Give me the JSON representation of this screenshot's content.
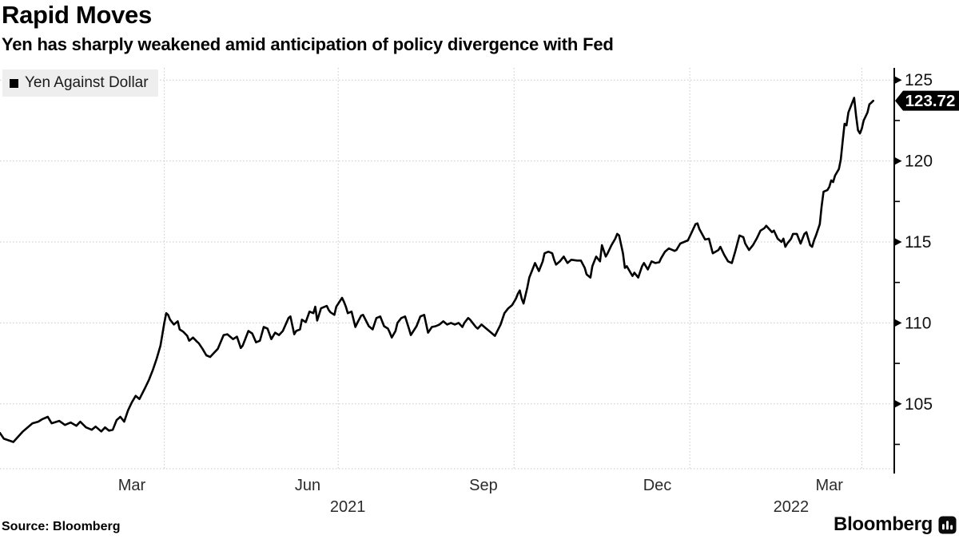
{
  "header": {
    "title": "Rapid Moves",
    "subtitle": "Yen has sharply weakened amid anticipation of policy divergence with Fed"
  },
  "legend": {
    "swatch_color": "#000000",
    "label": "Yen Against Dollar"
  },
  "footer": {
    "source": "Source: Bloomberg",
    "brand": "Bloomberg",
    "brand_icon": "bloomberg-bars-icon"
  },
  "colors": {
    "background": "#ffffff",
    "line": "#000000",
    "grid": "#c9c9c9",
    "axis": "#000000",
    "tick_label": "#111111",
    "month_label": "#2b2b2b",
    "legend_bg": "#eeeeee",
    "tag_bg": "#000000",
    "tag_text": "#ffffff"
  },
  "chart_data": {
    "type": "line",
    "title": "Rapid Moves",
    "subtitle": "Yen has sharply weakened amid anticipation of policy divergence with Fed",
    "xlabel": "",
    "ylabel": "",
    "grid": "dotted",
    "legend_position": "top-left",
    "y_axis_side": "right",
    "x_domain": [
      "2021-01-05",
      "2022-04-18"
    ],
    "y_domain": [
      100.7,
      125.75
    ],
    "y_ticks_major": [
      105,
      110,
      115,
      120,
      125
    ],
    "y_ticks_minor": [
      102.5,
      107.5,
      112.5,
      117.5,
      122.5
    ],
    "x_gridlines": [
      "2021-04-01",
      "2021-07-01",
      "2021-10-01",
      "2022-01-01",
      "2022-04-01"
    ],
    "x_ticks": [
      {
        "label": "Mar",
        "date": "2021-03-15"
      },
      {
        "label": "Jun",
        "date": "2021-06-15"
      },
      {
        "label": "Sep",
        "date": "2021-09-15"
      },
      {
        "label": "Dec",
        "date": "2021-12-15"
      },
      {
        "label": "Mar",
        "date": "2022-03-15"
      }
    ],
    "year_labels": [
      {
        "label": "2021",
        "date": "2021-07-06"
      },
      {
        "label": "2022",
        "date": "2022-02-23"
      }
    ],
    "last_value": 123.72,
    "last_value_label": "123.72",
    "series": [
      {
        "name": "Yen Against Dollar",
        "color": "#000000",
        "points": [
          [
            "2021-01-05",
            103.2
          ],
          [
            "2021-01-07",
            102.85
          ],
          [
            "2021-01-12",
            102.65
          ],
          [
            "2021-01-17",
            103.3
          ],
          [
            "2021-01-22",
            103.8
          ],
          [
            "2021-01-25",
            103.9
          ],
          [
            "2021-01-27",
            104.05
          ],
          [
            "2021-01-30",
            104.2
          ],
          [
            "2021-02-01",
            103.8
          ],
          [
            "2021-02-05",
            103.95
          ],
          [
            "2021-02-08",
            103.7
          ],
          [
            "2021-02-11",
            103.85
          ],
          [
            "2021-02-14",
            103.65
          ],
          [
            "2021-02-16",
            103.9
          ],
          [
            "2021-02-19",
            103.55
          ],
          [
            "2021-02-22",
            103.4
          ],
          [
            "2021-02-24",
            103.6
          ],
          [
            "2021-02-27",
            103.3
          ],
          [
            "2021-03-01",
            103.55
          ],
          [
            "2021-03-03",
            103.35
          ],
          [
            "2021-03-05",
            103.4
          ],
          [
            "2021-03-07",
            104.0
          ],
          [
            "2021-03-09",
            104.2
          ],
          [
            "2021-03-11",
            103.9
          ],
          [
            "2021-03-13",
            104.6
          ],
          [
            "2021-03-15",
            105.1
          ],
          [
            "2021-03-17",
            105.5
          ],
          [
            "2021-03-19",
            105.3
          ],
          [
            "2021-03-22",
            106.0
          ],
          [
            "2021-03-24",
            106.5
          ],
          [
            "2021-03-26",
            107.1
          ],
          [
            "2021-03-28",
            107.8
          ],
          [
            "2021-03-30",
            108.6
          ],
          [
            "2021-03-31",
            109.3
          ],
          [
            "2021-04-01",
            110.0
          ],
          [
            "2021-04-02",
            110.6
          ],
          [
            "2021-04-03",
            110.5
          ],
          [
            "2021-04-04",
            110.2
          ],
          [
            "2021-04-06",
            109.9
          ],
          [
            "2021-04-08",
            110.1
          ],
          [
            "2021-04-09",
            109.6
          ],
          [
            "2021-04-11",
            109.45
          ],
          [
            "2021-04-13",
            109.2
          ],
          [
            "2021-04-14",
            108.9
          ],
          [
            "2021-04-16",
            109.1
          ],
          [
            "2021-04-18",
            108.85
          ],
          [
            "2021-04-19",
            108.75
          ],
          [
            "2021-04-21",
            108.4
          ],
          [
            "2021-04-23",
            108.0
          ],
          [
            "2021-04-25",
            107.9
          ],
          [
            "2021-04-27",
            108.15
          ],
          [
            "2021-04-29",
            108.4
          ],
          [
            "2021-05-02",
            109.25
          ],
          [
            "2021-05-04",
            109.3
          ],
          [
            "2021-05-07",
            109.0
          ],
          [
            "2021-05-09",
            109.15
          ],
          [
            "2021-05-11",
            108.45
          ],
          [
            "2021-05-12",
            108.6
          ],
          [
            "2021-05-15",
            109.5
          ],
          [
            "2021-05-17",
            109.35
          ],
          [
            "2021-05-19",
            108.8
          ],
          [
            "2021-05-21",
            108.9
          ],
          [
            "2021-05-23",
            109.75
          ],
          [
            "2021-05-25",
            109.65
          ],
          [
            "2021-05-27",
            109.0
          ],
          [
            "2021-05-29",
            109.4
          ],
          [
            "2021-05-31",
            109.25
          ],
          [
            "2021-06-02",
            109.5
          ],
          [
            "2021-06-05",
            110.3
          ],
          [
            "2021-06-06",
            110.4
          ],
          [
            "2021-06-08",
            109.3
          ],
          [
            "2021-06-09",
            109.5
          ],
          [
            "2021-06-11",
            109.6
          ],
          [
            "2021-06-12",
            110.2
          ],
          [
            "2021-06-14",
            110.05
          ],
          [
            "2021-06-16",
            110.7
          ],
          [
            "2021-06-18",
            110.6
          ],
          [
            "2021-06-19",
            111.0
          ],
          [
            "2021-06-20",
            110.15
          ],
          [
            "2021-06-22",
            110.9
          ],
          [
            "2021-06-25",
            111.05
          ],
          [
            "2021-06-26",
            110.8
          ],
          [
            "2021-06-27",
            110.65
          ],
          [
            "2021-06-29",
            110.5
          ],
          [
            "2021-06-30",
            111.0
          ],
          [
            "2021-07-03",
            111.55
          ],
          [
            "2021-07-04",
            111.3
          ],
          [
            "2021-07-05",
            111.0
          ],
          [
            "2021-07-06",
            110.6
          ],
          [
            "2021-07-08",
            110.7
          ],
          [
            "2021-07-10",
            109.75
          ],
          [
            "2021-07-11",
            110.0
          ],
          [
            "2021-07-13",
            110.45
          ],
          [
            "2021-07-14",
            110.5
          ],
          [
            "2021-07-17",
            109.8
          ],
          [
            "2021-07-19",
            109.6
          ],
          [
            "2021-07-21",
            110.3
          ],
          [
            "2021-07-23",
            110.4
          ],
          [
            "2021-07-25",
            109.8
          ],
          [
            "2021-07-27",
            109.65
          ],
          [
            "2021-07-28",
            109.4
          ],
          [
            "2021-07-29",
            109.1
          ],
          [
            "2021-07-31",
            109.5
          ],
          [
            "2021-08-01",
            110.0
          ],
          [
            "2021-08-03",
            110.3
          ],
          [
            "2021-08-05",
            110.4
          ],
          [
            "2021-08-07",
            109.65
          ],
          [
            "2021-08-08",
            109.25
          ],
          [
            "2021-08-11",
            109.8
          ],
          [
            "2021-08-13",
            110.4
          ],
          [
            "2021-08-15",
            110.5
          ],
          [
            "2021-08-17",
            109.4
          ],
          [
            "2021-08-19",
            109.75
          ],
          [
            "2021-08-21",
            109.8
          ],
          [
            "2021-08-23",
            109.9
          ],
          [
            "2021-08-25",
            110.1
          ],
          [
            "2021-08-27",
            109.9
          ],
          [
            "2021-08-29",
            110.0
          ],
          [
            "2021-08-31",
            109.9
          ],
          [
            "2021-09-02",
            110.0
          ],
          [
            "2021-09-04",
            109.75
          ],
          [
            "2021-09-05",
            110.0
          ],
          [
            "2021-09-07",
            110.3
          ],
          [
            "2021-09-08",
            110.2
          ],
          [
            "2021-09-10",
            109.9
          ],
          [
            "2021-09-11",
            109.75
          ],
          [
            "2021-09-12",
            109.65
          ],
          [
            "2021-09-14",
            109.9
          ],
          [
            "2021-09-16",
            109.7
          ],
          [
            "2021-09-18",
            109.5
          ],
          [
            "2021-09-21",
            109.2
          ],
          [
            "2021-09-24",
            109.9
          ],
          [
            "2021-09-26",
            110.6
          ],
          [
            "2021-09-28",
            110.9
          ],
          [
            "2021-09-30",
            111.1
          ],
          [
            "2021-10-02",
            111.5
          ],
          [
            "2021-10-03",
            111.8
          ],
          [
            "2021-10-04",
            112.0
          ],
          [
            "2021-10-05",
            111.5
          ],
          [
            "2021-10-06",
            111.2
          ],
          [
            "2021-10-08",
            112.2
          ],
          [
            "2021-10-09",
            112.8
          ],
          [
            "2021-10-11",
            113.4
          ],
          [
            "2021-10-12",
            113.7
          ],
          [
            "2021-10-14",
            113.2
          ],
          [
            "2021-10-16",
            113.8
          ],
          [
            "2021-10-17",
            114.3
          ],
          [
            "2021-10-19",
            114.4
          ],
          [
            "2021-10-21",
            114.3
          ],
          [
            "2021-10-22",
            113.9
          ],
          [
            "2021-10-23",
            113.6
          ],
          [
            "2021-10-25",
            113.8
          ],
          [
            "2021-10-27",
            114.1
          ],
          [
            "2021-10-28",
            113.9
          ],
          [
            "2021-10-29",
            113.7
          ],
          [
            "2021-10-31",
            113.9
          ],
          [
            "2021-11-03",
            113.85
          ],
          [
            "2021-11-05",
            113.85
          ],
          [
            "2021-11-07",
            113.4
          ],
          [
            "2021-11-08",
            113.0
          ],
          [
            "2021-11-10",
            112.8
          ],
          [
            "2021-11-11",
            113.5
          ],
          [
            "2021-11-13",
            114.1
          ],
          [
            "2021-11-15",
            113.8
          ],
          [
            "2021-11-16",
            114.8
          ],
          [
            "2021-11-18",
            114.1
          ],
          [
            "2021-11-19",
            114.3
          ],
          [
            "2021-11-21",
            114.8
          ],
          [
            "2021-11-23",
            115.2
          ],
          [
            "2021-11-24",
            115.5
          ],
          [
            "2021-11-25",
            115.4
          ],
          [
            "2021-11-27",
            114.3
          ],
          [
            "2021-11-28",
            113.4
          ],
          [
            "2021-11-29",
            113.5
          ],
          [
            "2021-12-01",
            113.1
          ],
          [
            "2021-12-02",
            112.9
          ],
          [
            "2021-12-03",
            113.1
          ],
          [
            "2021-12-04",
            112.95
          ],
          [
            "2021-12-05",
            112.8
          ],
          [
            "2021-12-07",
            113.5
          ],
          [
            "2021-12-08",
            113.7
          ],
          [
            "2021-12-10",
            113.3
          ],
          [
            "2021-12-12",
            113.8
          ],
          [
            "2021-12-14",
            113.7
          ],
          [
            "2021-12-16",
            113.75
          ],
          [
            "2021-12-17",
            114.0
          ],
          [
            "2021-12-19",
            114.4
          ],
          [
            "2021-12-21",
            114.6
          ],
          [
            "2021-12-24",
            114.45
          ],
          [
            "2021-12-25",
            114.5
          ],
          [
            "2021-12-27",
            114.9
          ],
          [
            "2021-12-29",
            115.0
          ],
          [
            "2021-12-31",
            115.1
          ],
          [
            "2022-01-02",
            115.6
          ],
          [
            "2022-01-04",
            116.1
          ],
          [
            "2022-01-05",
            116.15
          ],
          [
            "2022-01-06",
            115.8
          ],
          [
            "2022-01-09",
            115.15
          ],
          [
            "2022-01-11",
            115.2
          ],
          [
            "2022-01-13",
            114.3
          ],
          [
            "2022-01-16",
            114.5
          ],
          [
            "2022-01-17",
            114.7
          ],
          [
            "2022-01-19",
            114.2
          ],
          [
            "2022-01-21",
            113.8
          ],
          [
            "2022-01-23",
            113.7
          ],
          [
            "2022-01-25",
            114.5
          ],
          [
            "2022-01-27",
            115.4
          ],
          [
            "2022-01-29",
            115.3
          ],
          [
            "2022-01-30",
            114.9
          ],
          [
            "2022-02-01",
            114.5
          ],
          [
            "2022-02-03",
            114.8
          ],
          [
            "2022-02-05",
            115.2
          ],
          [
            "2022-02-07",
            115.7
          ],
          [
            "2022-02-09",
            115.85
          ],
          [
            "2022-02-10",
            116.0
          ],
          [
            "2022-02-13",
            115.6
          ],
          [
            "2022-02-14",
            115.7
          ],
          [
            "2022-02-16",
            115.2
          ],
          [
            "2022-02-18",
            115.0
          ],
          [
            "2022-02-19",
            115.2
          ],
          [
            "2022-02-20",
            114.7
          ],
          [
            "2022-02-21",
            114.9
          ],
          [
            "2022-02-23",
            115.2
          ],
          [
            "2022-02-24",
            115.5
          ],
          [
            "2022-02-26",
            115.5
          ],
          [
            "2022-02-28",
            114.9
          ],
          [
            "2022-03-01",
            115.2
          ],
          [
            "2022-03-02",
            115.5
          ],
          [
            "2022-03-03",
            115.6
          ],
          [
            "2022-03-05",
            114.8
          ],
          [
            "2022-03-06",
            114.7
          ],
          [
            "2022-03-07",
            115.1
          ],
          [
            "2022-03-08",
            115.4
          ],
          [
            "2022-03-10",
            116.1
          ],
          [
            "2022-03-11",
            117.2
          ],
          [
            "2022-03-12",
            118.1
          ],
          [
            "2022-03-14",
            118.2
          ],
          [
            "2022-03-15",
            118.4
          ],
          [
            "2022-03-16",
            118.8
          ],
          [
            "2022-03-17",
            118.7
          ],
          [
            "2022-03-18",
            119.1
          ],
          [
            "2022-03-20",
            119.5
          ],
          [
            "2022-03-21",
            120.1
          ],
          [
            "2022-03-22",
            121.2
          ],
          [
            "2022-03-23",
            122.3
          ],
          [
            "2022-03-24",
            122.2
          ],
          [
            "2022-03-25",
            123.0
          ],
          [
            "2022-03-28",
            123.9
          ],
          [
            "2022-03-29",
            122.8
          ],
          [
            "2022-03-30",
            121.9
          ],
          [
            "2022-03-31",
            121.7
          ],
          [
            "2022-04-01",
            122.0
          ],
          [
            "2022-04-02",
            122.5
          ],
          [
            "2022-04-04",
            123.0
          ],
          [
            "2022-04-05",
            123.5
          ],
          [
            "2022-04-06",
            123.6
          ],
          [
            "2022-04-07",
            123.72
          ]
        ]
      }
    ]
  }
}
